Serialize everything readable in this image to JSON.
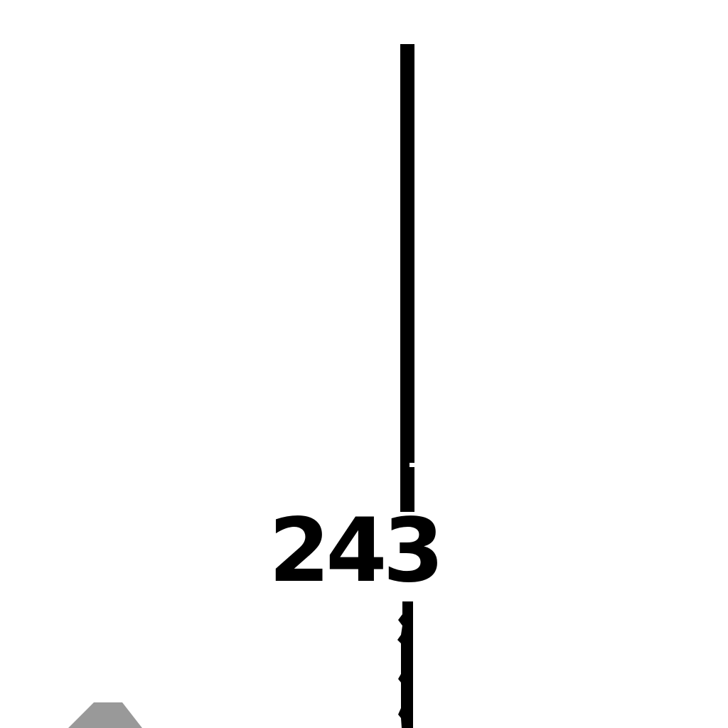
{
  "map": {
    "route_number": "243",
    "colors": {
      "background": "#ffffff",
      "line": "#000000",
      "label": "#000000",
      "marker": "#999999"
    },
    "icons": {
      "marker": "triangle-marker-icon"
    }
  }
}
